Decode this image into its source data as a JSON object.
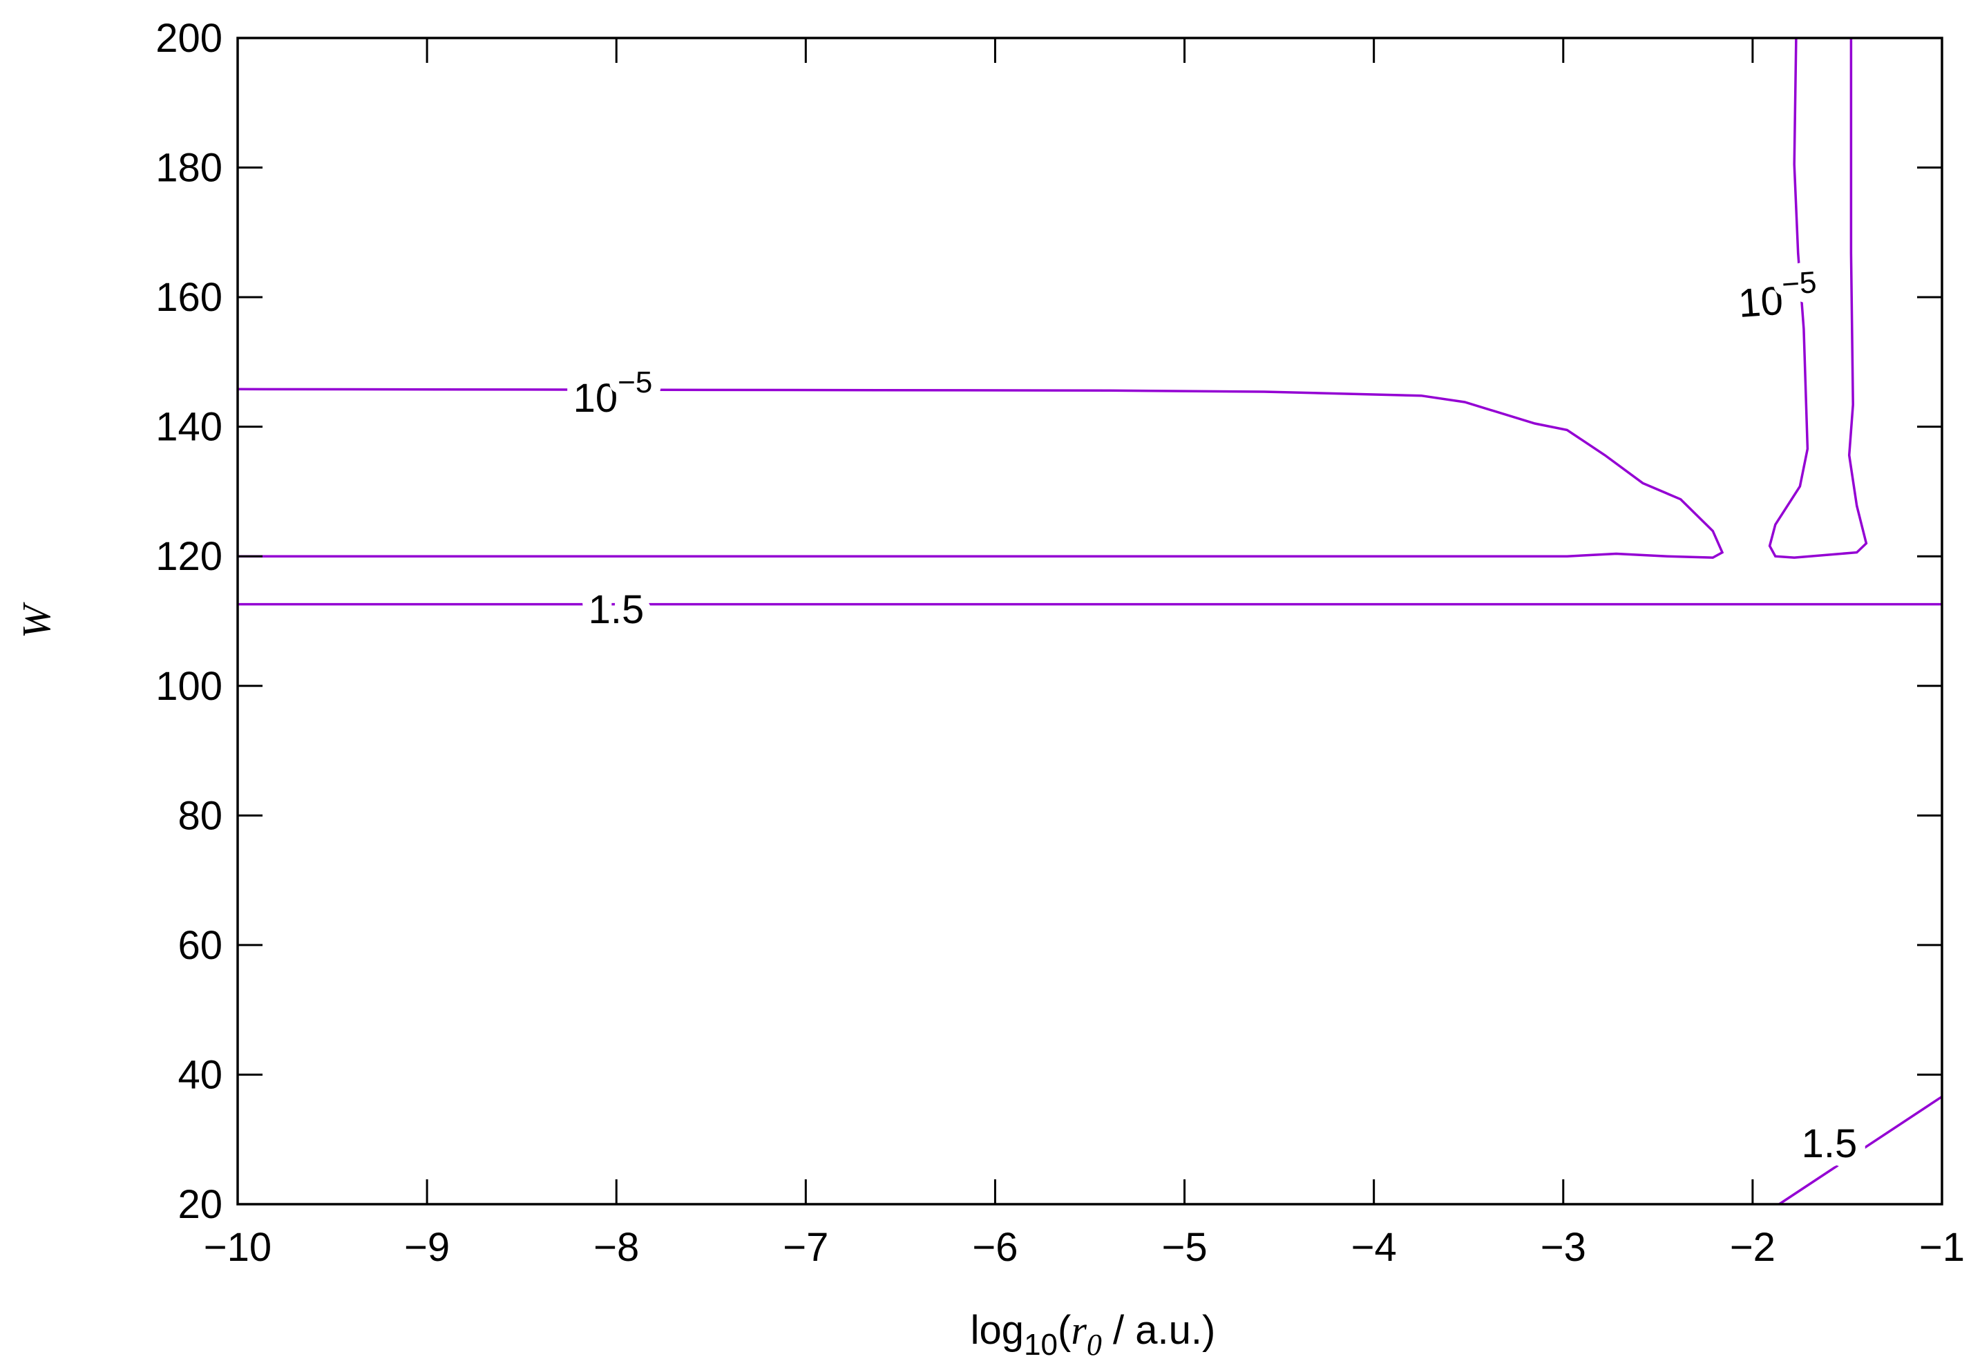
{
  "chart_data": {
    "type": "contour",
    "xlabel": [
      "log",
      "10",
      "(",
      "r",
      "0",
      " / a.u.)"
    ],
    "ylabel": "W",
    "xlim": [
      -10,
      -1
    ],
    "ylim": [
      20,
      200
    ],
    "xticks": [
      {
        "value": -10,
        "label": "−10"
      },
      {
        "value": -9,
        "label": "−9"
      },
      {
        "value": -8,
        "label": "−8"
      },
      {
        "value": -7,
        "label": "−7"
      },
      {
        "value": -6,
        "label": "−6"
      },
      {
        "value": -5,
        "label": "−5"
      },
      {
        "value": -4,
        "label": "−4"
      },
      {
        "value": -3,
        "label": "−3"
      },
      {
        "value": -2,
        "label": "−2"
      },
      {
        "value": -1,
        "label": "−1"
      }
    ],
    "yticks": [
      20,
      40,
      60,
      80,
      100,
      120,
      140,
      160,
      180,
      200
    ],
    "series": [
      {
        "color": "#9400d3",
        "x": [
          -10,
          -5.4,
          -4.58,
          -3.75,
          -3.52,
          -3.15,
          -2.98,
          -2.78,
          -2.58,
          -2.38,
          -2.21,
          -2.16,
          -2.21,
          -2.45,
          -2.72,
          -2.98,
          -10
        ],
        "y": [
          145.8,
          145.6,
          145.4,
          144.8,
          143.8,
          140.5,
          139.5,
          135.6,
          131.3,
          128.8,
          123.9,
          120.6,
          119.8,
          120.0,
          120.4,
          120.0,
          120.0
        ]
      },
      {
        "color": "#9400d3",
        "x": [
          -1.77,
          -1.78,
          -1.76,
          -1.73,
          -1.71,
          -1.75,
          -1.88,
          -1.91,
          -1.88,
          -1.78,
          -1.45,
          -1.4,
          -1.45,
          -1.49,
          -1.47,
          -1.48,
          -1.48
        ],
        "y": [
          200,
          180.5,
          166.8,
          155.1,
          136.6,
          130.8,
          124.9,
          121.6,
          120.0,
          119.8,
          120.6,
          122.0,
          127.8,
          135.6,
          143.4,
          166.8,
          200
        ]
      },
      {
        "color": "#9400d3",
        "x": [
          -10,
          -1
        ],
        "y": [
          112.6,
          112.6
        ]
      },
      {
        "color": "#9400d3",
        "x": [
          -1.86,
          -1
        ],
        "y": [
          20,
          36.6
        ]
      }
    ],
    "contour_labels": [
      {
        "text": "10",
        "sup": "−5"
      },
      {
        "text": "10",
        "sup": "−5"
      },
      {
        "text": "1.5"
      },
      {
        "text": "1.5"
      }
    ]
  }
}
